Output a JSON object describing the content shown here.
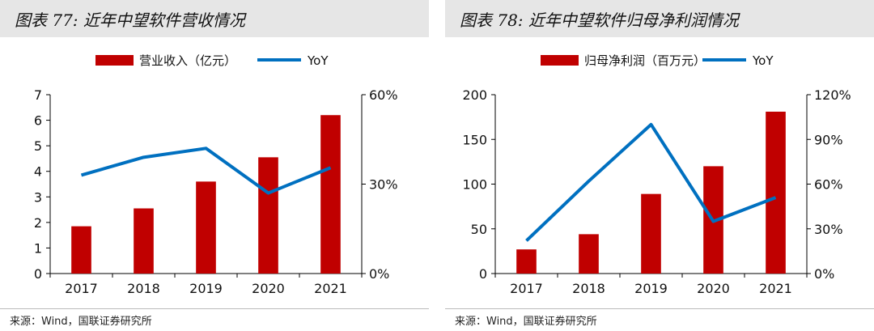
{
  "colors": {
    "bar": "#c00000",
    "line": "#0070c0",
    "title_bg": "#e6e6e6"
  },
  "chart_data": [
    {
      "type": "bar",
      "title": "图表 77: 近年中望软件营收情况",
      "source": "来源：Wind，国联证券研究所",
      "categories": [
        "2017",
        "2018",
        "2019",
        "2020",
        "2021"
      ],
      "series": [
        {
          "name": "营业收入（亿元）",
          "kind": "bar",
          "axis": "left",
          "values": [
            1.85,
            2.55,
            3.6,
            4.55,
            6.2
          ]
        },
        {
          "name": "YoY",
          "kind": "line",
          "axis": "right",
          "values": [
            0.33,
            0.39,
            0.42,
            0.27,
            0.355
          ]
        }
      ],
      "ylim_left": [
        0,
        7
      ],
      "yticks_left": [
        "0",
        "1",
        "2",
        "3",
        "4",
        "5",
        "6",
        "7"
      ],
      "ylim_right": [
        0,
        0.6
      ],
      "yticks_right": [
        "0%",
        "30%",
        "60%"
      ],
      "grid": false,
      "legend": "top"
    },
    {
      "type": "bar",
      "title": "图表 78: 近年中望软件归母净利润情况",
      "source": "来源：Wind，国联证券研究所",
      "categories": [
        "2017",
        "2018",
        "2019",
        "2020",
        "2021"
      ],
      "series": [
        {
          "name": "归母净利润（百万元）",
          "kind": "bar",
          "axis": "left",
          "values": [
            27,
            44,
            89,
            120,
            181
          ]
        },
        {
          "name": "YoY",
          "kind": "line",
          "axis": "right",
          "values": [
            0.22,
            0.62,
            1.0,
            0.35,
            0.51
          ]
        }
      ],
      "ylim_left": [
        0,
        200
      ],
      "yticks_left": [
        "0",
        "50",
        "100",
        "150",
        "200"
      ],
      "ylim_right": [
        0,
        1.2
      ],
      "yticks_right": [
        "0%",
        "30%",
        "60%",
        "90%",
        "120%"
      ],
      "grid": false,
      "legend": "top"
    }
  ]
}
